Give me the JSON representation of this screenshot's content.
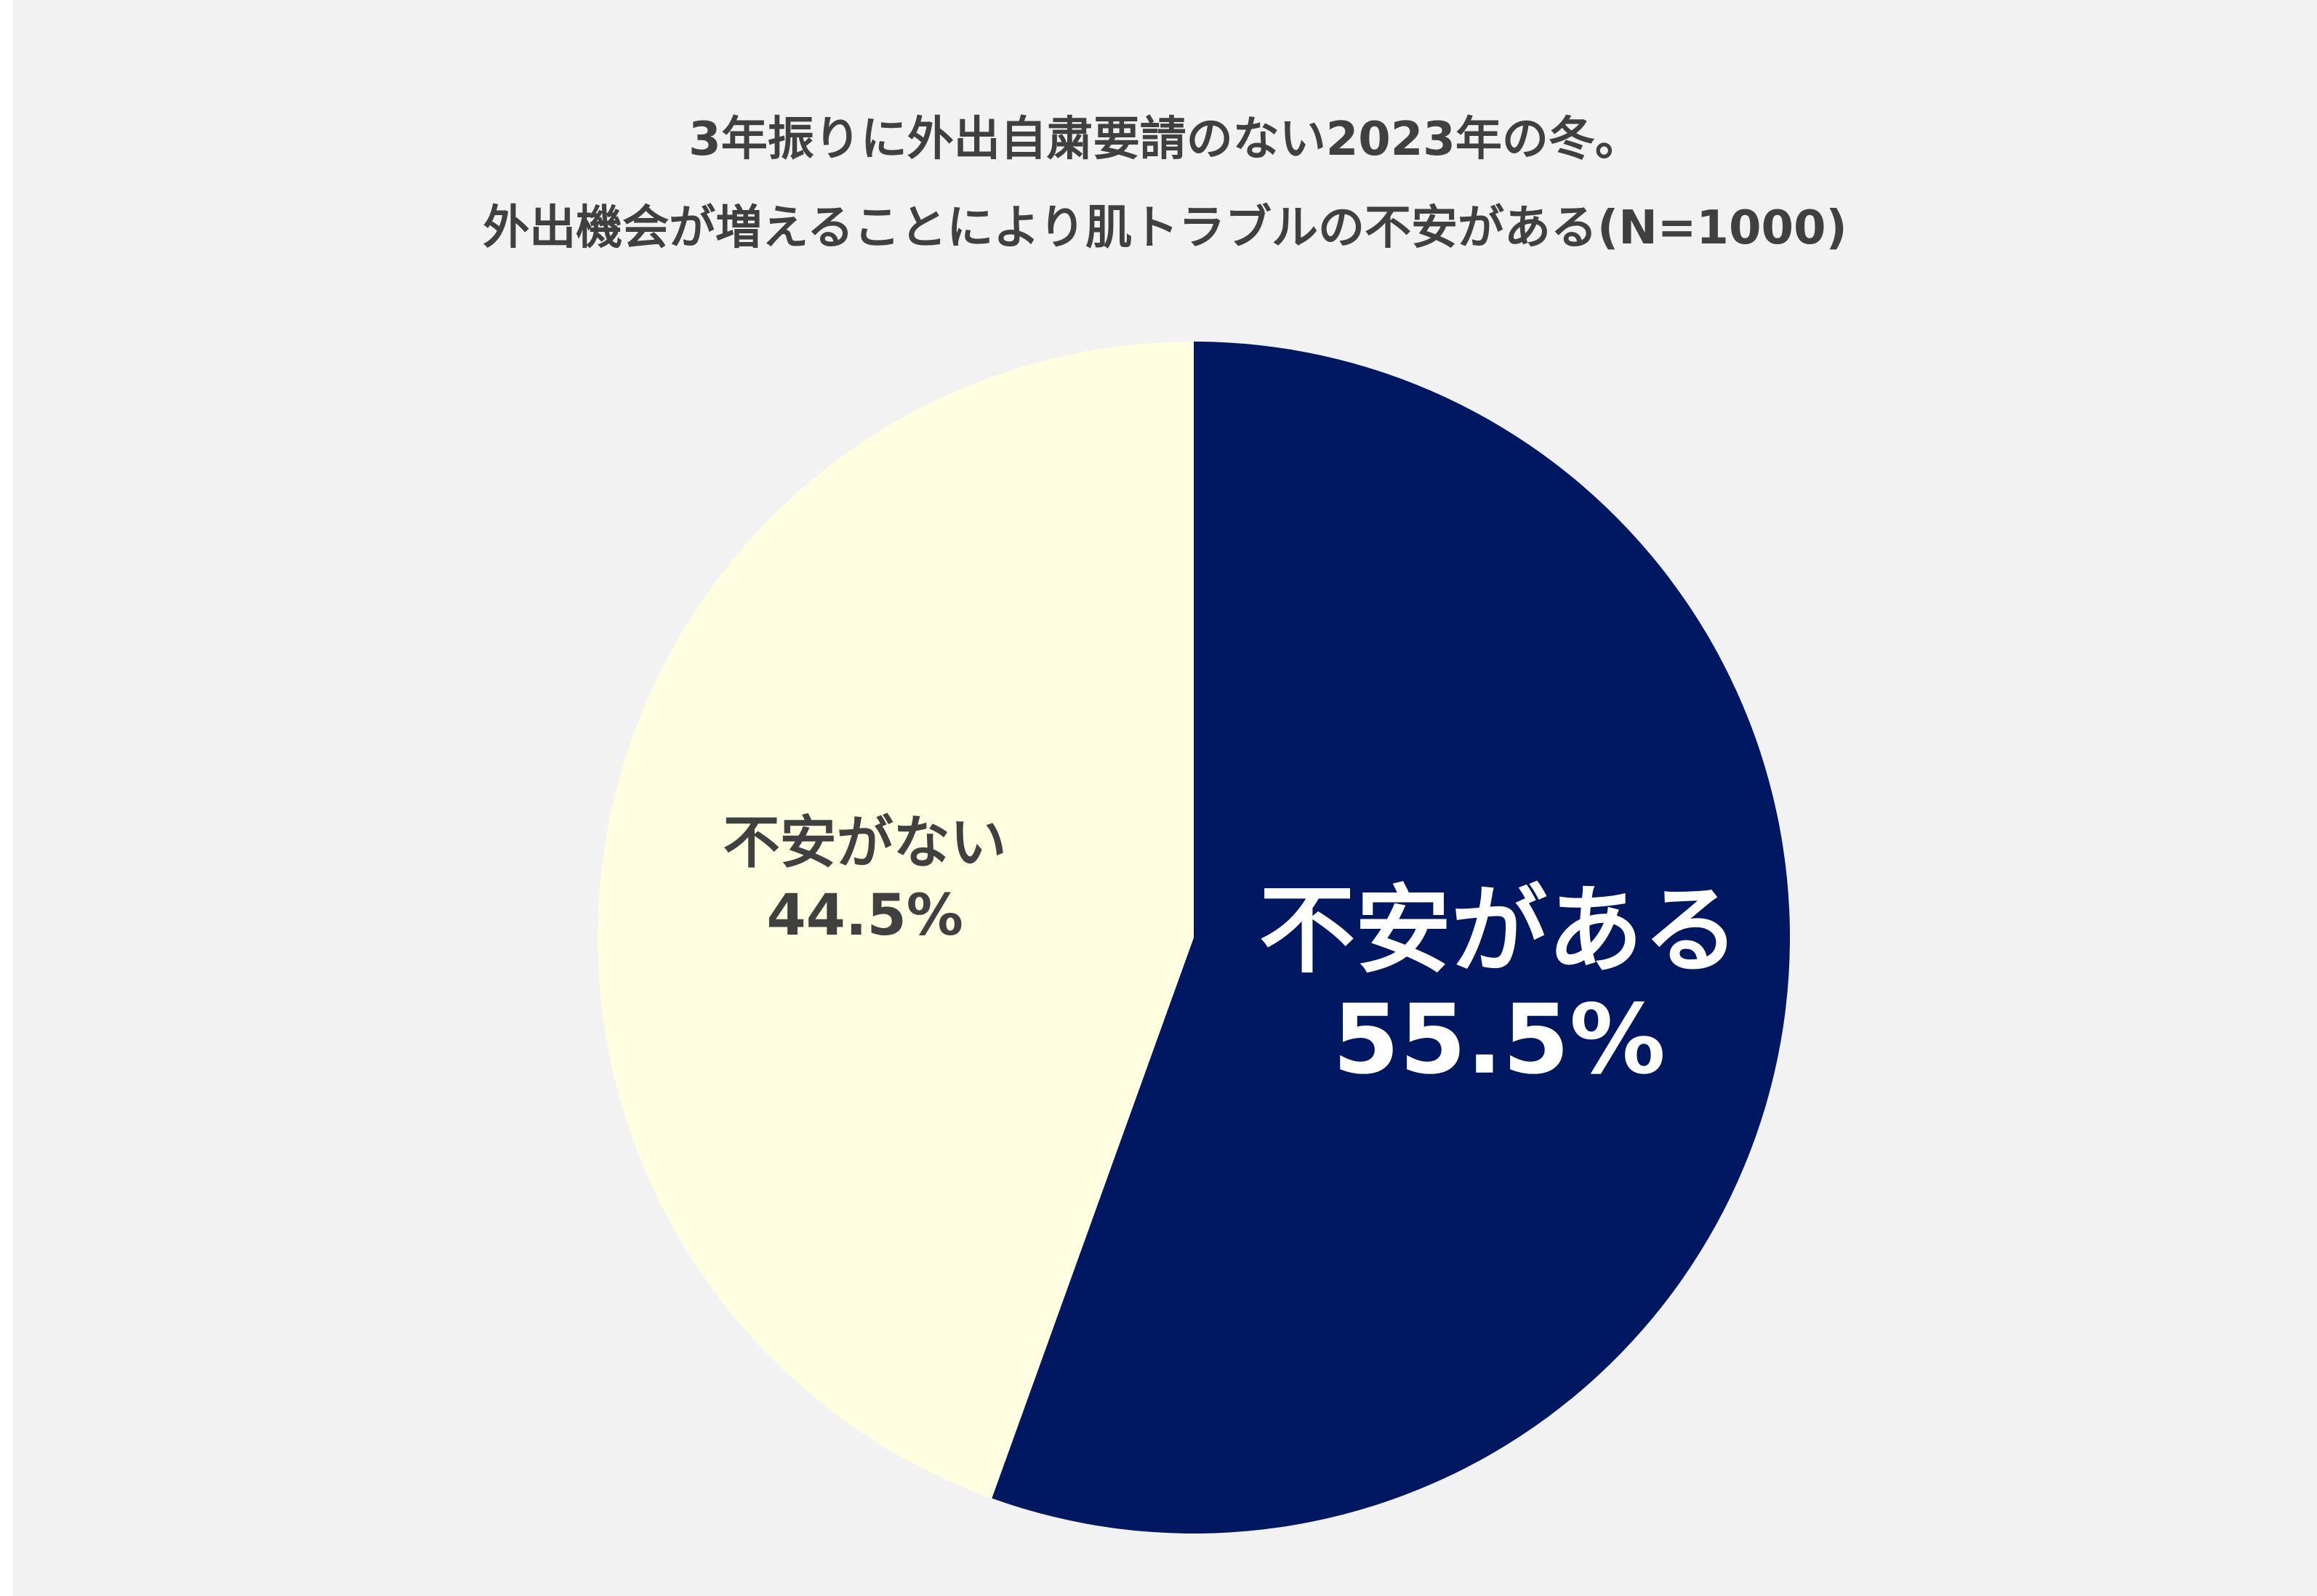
{
  "title": {
    "line1": "3年振りに外出自粛要請のない2023年の冬。",
    "line2": "外出機会が増えることにより肌トラブルの不安がある(N=1000)"
  },
  "colors": {
    "background": "#f2f2f2",
    "title_text": "#404040",
    "slice_yes": "#001862",
    "slice_no": "#fffee0",
    "label_yes": "#ffffff",
    "label_no": "#404040"
  },
  "chart_data": {
    "type": "pie",
    "title": "3年振りに外出自粛要請のない2023年の冬。 外出機会が増えることにより肌トラブルの不安がある(N=1000)",
    "start_angle": "12 o'clock",
    "direction": "clockwise",
    "slices": [
      {
        "label": "不安がある",
        "value": 55.5,
        "value_label": "55.5%",
        "color": "#001862",
        "label_color": "#ffffff"
      },
      {
        "label": "不安がない",
        "value": 44.5,
        "value_label": "44.5%",
        "color": "#fffee0",
        "label_color": "#404040"
      }
    ]
  }
}
